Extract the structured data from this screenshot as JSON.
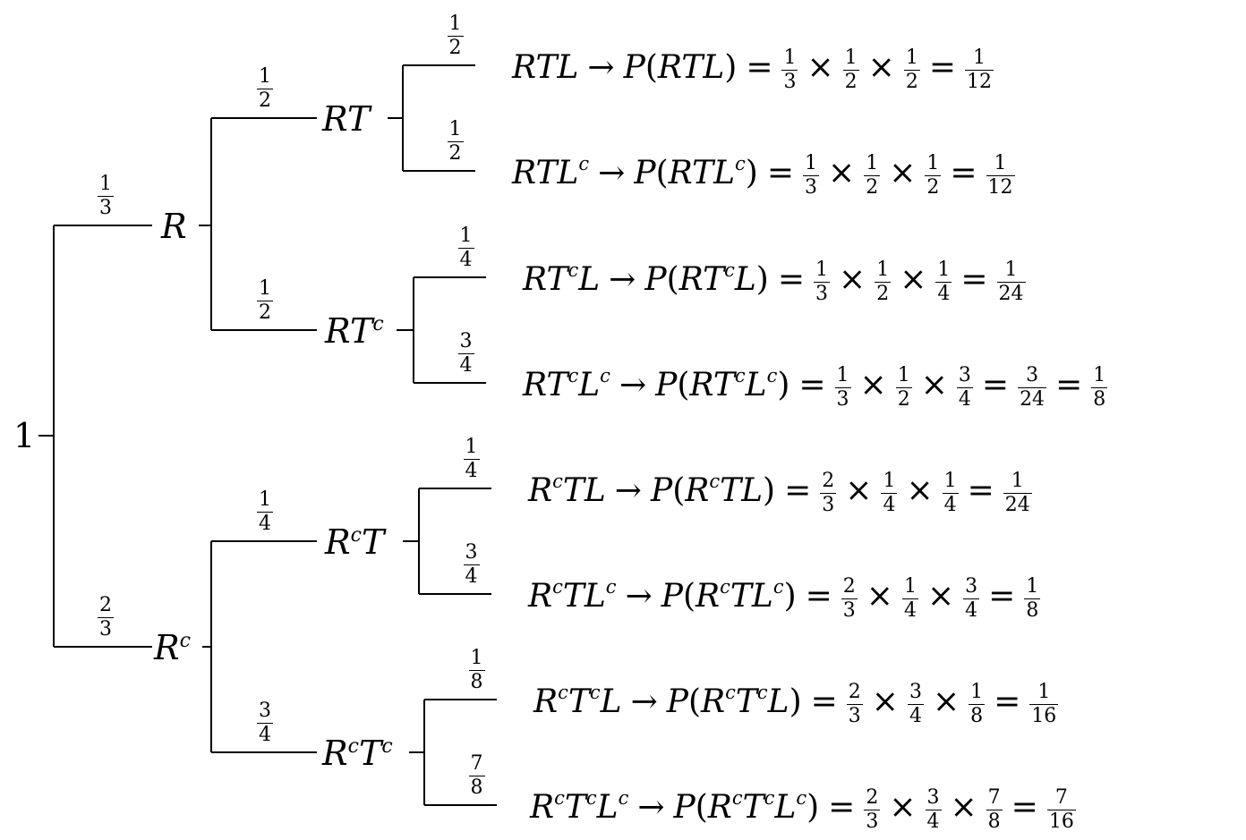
{
  "root": {
    "label": "1"
  },
  "level1": [
    {
      "label": "R",
      "sup": "",
      "prob": {
        "n": "1",
        "d": "3"
      }
    },
    {
      "label": "R",
      "sup": "c",
      "prob": {
        "n": "2",
        "d": "3"
      }
    }
  ],
  "level2": [
    {
      "parts": [
        [
          "R",
          ""
        ],
        [
          "T",
          ""
        ]
      ],
      "prob": {
        "n": "1",
        "d": "2"
      }
    },
    {
      "parts": [
        [
          "R",
          ""
        ],
        [
          "T",
          "c"
        ]
      ],
      "prob": {
        "n": "1",
        "d": "2"
      }
    },
    {
      "parts": [
        [
          "R",
          "c"
        ],
        [
          "T",
          ""
        ]
      ],
      "prob": {
        "n": "1",
        "d": "4"
      }
    },
    {
      "parts": [
        [
          "R",
          "c"
        ],
        [
          "T",
          "c"
        ]
      ],
      "prob": {
        "n": "3",
        "d": "4"
      }
    }
  ],
  "leaves": [
    {
      "prob": {
        "n": "1",
        "d": "2"
      },
      "event": [
        [
          "R",
          ""
        ],
        [
          "T",
          ""
        ],
        [
          "L",
          ""
        ]
      ],
      "factors": [
        [
          "1",
          "3"
        ],
        [
          "1",
          "2"
        ],
        [
          "1",
          "2"
        ]
      ],
      "results": [
        [
          "1",
          "12"
        ]
      ]
    },
    {
      "prob": {
        "n": "1",
        "d": "2"
      },
      "event": [
        [
          "R",
          ""
        ],
        [
          "T",
          ""
        ],
        [
          "L",
          "c"
        ]
      ],
      "factors": [
        [
          "1",
          "3"
        ],
        [
          "1",
          "2"
        ],
        [
          "1",
          "2"
        ]
      ],
      "results": [
        [
          "1",
          "12"
        ]
      ]
    },
    {
      "prob": {
        "n": "1",
        "d": "4"
      },
      "event": [
        [
          "R",
          ""
        ],
        [
          "T",
          "c"
        ],
        [
          "L",
          ""
        ]
      ],
      "factors": [
        [
          "1",
          "3"
        ],
        [
          "1",
          "2"
        ],
        [
          "1",
          "4"
        ]
      ],
      "results": [
        [
          "1",
          "24"
        ]
      ]
    },
    {
      "prob": {
        "n": "3",
        "d": "4"
      },
      "event": [
        [
          "R",
          ""
        ],
        [
          "T",
          "c"
        ],
        [
          "L",
          "c"
        ]
      ],
      "factors": [
        [
          "1",
          "3"
        ],
        [
          "1",
          "2"
        ],
        [
          "3",
          "4"
        ]
      ],
      "results": [
        [
          "3",
          "24"
        ],
        [
          "1",
          "8"
        ]
      ]
    },
    {
      "prob": {
        "n": "1",
        "d": "4"
      },
      "event": [
        [
          "R",
          "c"
        ],
        [
          "T",
          ""
        ],
        [
          "L",
          ""
        ]
      ],
      "factors": [
        [
          "2",
          "3"
        ],
        [
          "1",
          "4"
        ],
        [
          "1",
          "4"
        ]
      ],
      "results": [
        [
          "1",
          "24"
        ]
      ]
    },
    {
      "prob": {
        "n": "3",
        "d": "4"
      },
      "event": [
        [
          "R",
          "c"
        ],
        [
          "T",
          ""
        ],
        [
          "L",
          "c"
        ]
      ],
      "factors": [
        [
          "2",
          "3"
        ],
        [
          "1",
          "4"
        ],
        [
          "3",
          "4"
        ]
      ],
      "results": [
        [
          "1",
          "8"
        ]
      ]
    },
    {
      "prob": {
        "n": "1",
        "d": "8"
      },
      "event": [
        [
          "R",
          "c"
        ],
        [
          "T",
          "c"
        ],
        [
          "L",
          ""
        ]
      ],
      "factors": [
        [
          "2",
          "3"
        ],
        [
          "3",
          "4"
        ],
        [
          "1",
          "8"
        ]
      ],
      "results": [
        [
          "1",
          "16"
        ]
      ]
    },
    {
      "prob": {
        "n": "7",
        "d": "8"
      },
      "event": [
        [
          "R",
          "c"
        ],
        [
          "T",
          "c"
        ],
        [
          "L",
          "c"
        ]
      ],
      "factors": [
        [
          "2",
          "3"
        ],
        [
          "3",
          "4"
        ],
        [
          "7",
          "8"
        ]
      ],
      "results": [
        [
          "7",
          "16"
        ]
      ]
    }
  ],
  "symbols": {
    "arrow": "→",
    "times": "×",
    "equals": "=",
    "prob_fn": "P",
    "lparen": "(",
    "rparen": ")"
  }
}
